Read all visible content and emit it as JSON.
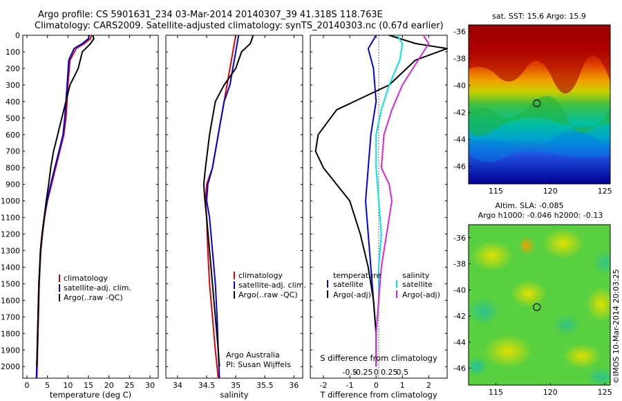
{
  "title": {
    "line1": "Argo profile: CS 5901631_234 03-Mar-2014 20140307_39 41.318S 118.763E",
    "line2": "Climatology: CARS2009. Satellite-adjusted climatology: synTS_20140303.nc (0.67d earlier)"
  },
  "colors": {
    "climatology": "#dd0000",
    "satellite": "#0000dd",
    "argo": "#000000",
    "sat_salinity": "#00e5e5",
    "argo_salinity": "#e020e0"
  },
  "chart_data": [
    {
      "type": "line",
      "name": "temperature-profile",
      "xlabel": "temperature (deg C)",
      "xlim": [
        -1,
        32
      ],
      "ylim": [
        0,
        2070
      ],
      "xticks": [
        0,
        5,
        10,
        15,
        20,
        25,
        30
      ],
      "yticks": [
        0,
        100,
        200,
        300,
        400,
        500,
        600,
        700,
        800,
        900,
        1000,
        1100,
        1200,
        1300,
        1400,
        1500,
        1600,
        1700,
        1800,
        1900,
        2000
      ],
      "legend": [
        "climatology",
        "satellite-adj. clim.",
        "Argo(..raw -QC)"
      ],
      "series": [
        {
          "name": "climatology",
          "color": "#dd0000",
          "points": [
            [
              15.7,
              0
            ],
            [
              15.5,
              20
            ],
            [
              14,
              50
            ],
            [
              12,
              80
            ],
            [
              10.5,
              150
            ],
            [
              10,
              300
            ],
            [
              9.8,
              400
            ],
            [
              9.5,
              500
            ],
            [
              9.0,
              600
            ],
            [
              8.0,
              700
            ],
            [
              7.0,
              800
            ],
            [
              6.0,
              900
            ],
            [
              5.0,
              1000
            ],
            [
              4.3,
              1100
            ],
            [
              3.8,
              1200
            ],
            [
              3.4,
              1300
            ],
            [
              3.2,
              1400
            ],
            [
              3.0,
              1500
            ],
            [
              2.9,
              1600
            ],
            [
              2.8,
              1700
            ],
            [
              2.7,
              1800
            ],
            [
              2.6,
              1900
            ],
            [
              2.5,
              2000
            ],
            [
              2.4,
              2070
            ]
          ]
        },
        {
          "name": "satellite-adj. clim.",
          "color": "#0000dd",
          "points": [
            [
              15.2,
              0
            ],
            [
              15,
              20
            ],
            [
              13.5,
              50
            ],
            [
              11.5,
              80
            ],
            [
              10.2,
              150
            ],
            [
              9.8,
              300
            ],
            [
              9.5,
              400
            ],
            [
              9.2,
              500
            ],
            [
              8.8,
              600
            ],
            [
              7.8,
              700
            ],
            [
              6.8,
              800
            ],
            [
              5.8,
              900
            ],
            [
              4.9,
              1000
            ],
            [
              4.2,
              1100
            ],
            [
              3.7,
              1200
            ],
            [
              3.3,
              1300
            ],
            [
              3.1,
              1400
            ],
            [
              2.9,
              1500
            ],
            [
              2.8,
              1600
            ],
            [
              2.7,
              1700
            ],
            [
              2.6,
              1800
            ],
            [
              2.5,
              1900
            ],
            [
              2.4,
              2000
            ],
            [
              2.3,
              2070
            ]
          ]
        },
        {
          "name": "Argo(..raw -QC)",
          "color": "#000000",
          "points": [
            [
              16,
              0
            ],
            [
              16.3,
              20
            ],
            [
              15.5,
              50
            ],
            [
              13.5,
              100
            ],
            [
              12.5,
              200
            ],
            [
              10.5,
              300
            ],
            [
              9.5,
              400
            ],
            [
              8.5,
              500
            ],
            [
              7.5,
              600
            ],
            [
              6.5,
              700
            ],
            [
              5.8,
              800
            ],
            [
              5.3,
              900
            ],
            [
              4.7,
              1000
            ],
            [
              4.2,
              1100
            ],
            [
              3.7,
              1200
            ],
            [
              3.3,
              1300
            ],
            [
              3.1,
              1400
            ],
            [
              2.9,
              1500
            ],
            [
              2.8,
              1600
            ],
            [
              2.7,
              1700
            ],
            [
              2.6,
              1800
            ],
            [
              2.5,
              1900
            ],
            [
              2.4,
              2000
            ]
          ]
        }
      ]
    },
    {
      "type": "line",
      "name": "salinity-profile",
      "xlabel": "salinity",
      "xlim": [
        33.8,
        36.15
      ],
      "ylim": [
        0,
        2070
      ],
      "xticks": [
        34,
        34.5,
        35,
        35.5,
        36
      ],
      "legend": [
        "climatology",
        "satellite-adj. clim.",
        "Argo(..raw -QC)"
      ],
      "annotation": [
        "Argo Australia",
        "PI: Susan Wijffels"
      ],
      "series": [
        {
          "name": "climatology",
          "color": "#dd0000",
          "points": [
            [
              35.0,
              0
            ],
            [
              34.95,
              100
            ],
            [
              34.9,
              200
            ],
            [
              34.85,
              300
            ],
            [
              34.8,
              400
            ],
            [
              34.7,
              600
            ],
            [
              34.6,
              800
            ],
            [
              34.5,
              900
            ],
            [
              34.48,
              1000
            ],
            [
              34.5,
              1100
            ],
            [
              34.52,
              1300
            ],
            [
              34.55,
              1500
            ],
            [
              34.6,
              1700
            ],
            [
              34.65,
              1900
            ],
            [
              34.7,
              2070
            ]
          ]
        },
        {
          "name": "satellite-adj. clim.",
          "color": "#0000dd",
          "points": [
            [
              35.05,
              0
            ],
            [
              35.0,
              100
            ],
            [
              34.95,
              200
            ],
            [
              34.9,
              300
            ],
            [
              34.8,
              400
            ],
            [
              34.7,
              600
            ],
            [
              34.6,
              800
            ],
            [
              34.52,
              900
            ],
            [
              34.5,
              1000
            ],
            [
              34.55,
              1100
            ],
            [
              34.6,
              1300
            ],
            [
              34.65,
              1500
            ],
            [
              34.68,
              1700
            ],
            [
              34.7,
              1900
            ],
            [
              34.72,
              2070
            ]
          ]
        },
        {
          "name": "Argo(..raw -QC)",
          "color": "#000000",
          "points": [
            [
              35.3,
              0
            ],
            [
              35.25,
              50
            ],
            [
              35.1,
              100
            ],
            [
              35.0,
              200
            ],
            [
              34.8,
              300
            ],
            [
              34.65,
              400
            ],
            [
              34.55,
              600
            ],
            [
              34.48,
              800
            ],
            [
              34.45,
              900
            ],
            [
              34.47,
              1000
            ],
            [
              34.5,
              1100
            ],
            [
              34.55,
              1300
            ],
            [
              34.6,
              1500
            ],
            [
              34.65,
              1700
            ],
            [
              34.7,
              1900
            ],
            [
              34.72,
              2000
            ]
          ]
        }
      ]
    },
    {
      "type": "line",
      "name": "difference-profile",
      "xlabel": "T difference from climatology",
      "xlabel_top": "S difference from climatology",
      "xlim": [
        -2.5,
        2.7
      ],
      "ylim": [
        0,
        2070
      ],
      "xticks": [
        -2,
        -1,
        0,
        1,
        2
      ],
      "xticks_s": [
        -0.5,
        -0.25,
        0,
        0.25,
        0.5
      ],
      "legend_temperature": {
        "title": "temperature",
        "items": [
          "satellite",
          "Argo(-adj)"
        ]
      },
      "legend_salinity": {
        "title": "salinity",
        "items": [
          "satellite",
          "Argo(-adj)"
        ]
      },
      "series": [
        {
          "name": "temperature satellite",
          "color": "#0000dd",
          "points": [
            [
              0,
              0
            ],
            [
              -0.3,
              80
            ],
            [
              -0.1,
              200
            ],
            [
              0,
              400
            ],
            [
              -0.2,
              600
            ],
            [
              -0.3,
              800
            ],
            [
              -0.4,
              1000
            ],
            [
              -0.3,
              1200
            ],
            [
              -0.2,
              1400
            ],
            [
              -0.1,
              1600
            ],
            [
              0,
              1800
            ],
            [
              0,
              2000
            ]
          ]
        },
        {
          "name": "temperature Argo(-adj)",
          "color": "#000000",
          "points": [
            [
              0.5,
              0
            ],
            [
              1.5,
              50
            ],
            [
              2.7,
              80
            ],
            [
              1.5,
              150
            ],
            [
              0.5,
              300
            ],
            [
              -1.5,
              450
            ],
            [
              -2.2,
              600
            ],
            [
              -2.3,
              700
            ],
            [
              -2.0,
              800
            ],
            [
              -1.5,
              900
            ],
            [
              -1.0,
              1000
            ],
            [
              -0.6,
              1200
            ],
            [
              -0.3,
              1400
            ],
            [
              -0.1,
              1600
            ],
            [
              0,
              1800
            ],
            [
              0,
              2000
            ]
          ]
        },
        {
          "name": "salinity satellite",
          "color": "#00e5e5",
          "points": [
            [
              0.8,
              0
            ],
            [
              1.0,
              50
            ],
            [
              0.9,
              150
            ],
            [
              0.5,
              300
            ],
            [
              0.2,
              450
            ],
            [
              0,
              600
            ],
            [
              0,
              800
            ],
            [
              0.1,
              1000
            ],
            [
              0.2,
              1200
            ],
            [
              0.1,
              1400
            ],
            [
              0.1,
              1600
            ],
            [
              0,
              1800
            ],
            [
              0,
              2000
            ]
          ]
        },
        {
          "name": "salinity Argo(-adj)",
          "color": "#e020e0",
          "points": [
            [
              1.8,
              0
            ],
            [
              2.0,
              50
            ],
            [
              1.6,
              150
            ],
            [
              1.0,
              300
            ],
            [
              0.6,
              450
            ],
            [
              0.3,
              600
            ],
            [
              0.2,
              800
            ],
            [
              0.5,
              900
            ],
            [
              0.6,
              1000
            ],
            [
              0.4,
              1200
            ],
            [
              0.2,
              1400
            ],
            [
              0.1,
              1600
            ],
            [
              0,
              1800
            ],
            [
              0,
              2000
            ]
          ]
        }
      ]
    },
    {
      "type": "heatmap",
      "name": "sst-map",
      "title": "sat. SST: 15.6  Argo: 15.9",
      "xlim": [
        112.5,
        125.5
      ],
      "ylim": [
        -47.3,
        -35.5
      ],
      "xticks": [
        115,
        120,
        125
      ],
      "yticks": [
        -36,
        -38,
        -40,
        -42,
        -44,
        -46
      ],
      "marker": {
        "lon": 118.763,
        "lat": -41.318
      }
    },
    {
      "type": "heatmap",
      "name": "sla-map",
      "title": [
        "Altim. SLA: -0.085",
        "Argo h1000: -0.046 h2000: -0.13"
      ],
      "xlim": [
        112.5,
        125.5
      ],
      "ylim": [
        -47.3,
        -35.0
      ],
      "xticks": [
        115,
        120,
        125
      ],
      "yticks": [
        -36,
        -38,
        -40,
        -42,
        -44,
        -46
      ],
      "marker": {
        "lon": 118.763,
        "lat": -41.318
      },
      "side_label": "©IMOS 10-Mar-2014 20:03:25"
    }
  ]
}
